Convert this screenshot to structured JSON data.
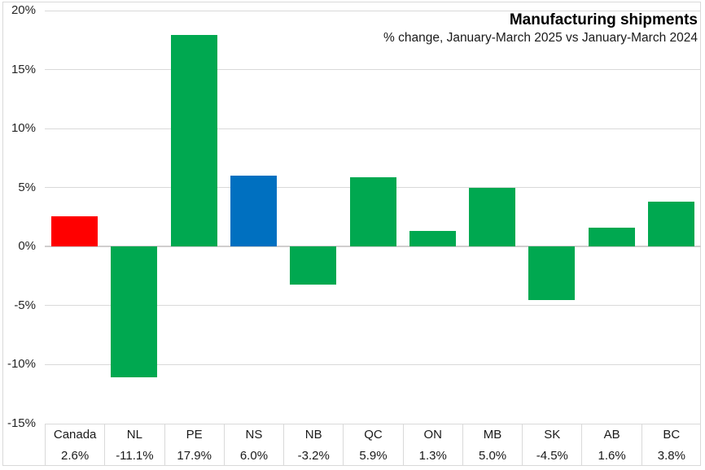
{
  "chart": {
    "title": "Manufacturing shipments",
    "subtitle": "% change, January-March 2025 vs January-March 2024"
  },
  "chart_data": {
    "type": "bar",
    "title": "Manufacturing shipments",
    "subtitle": "% change, January-March 2025 vs January-March 2024",
    "categories": [
      "Canada",
      "NL",
      "PE",
      "NS",
      "NB",
      "QC",
      "ON",
      "MB",
      "SK",
      "AB",
      "BC"
    ],
    "values": [
      2.6,
      -11.1,
      17.9,
      6.0,
      -3.2,
      5.9,
      1.3,
      5.0,
      -4.5,
      1.6,
      3.8
    ],
    "value_labels": [
      "2.6%",
      "-11.1%",
      "17.9%",
      "6.0%",
      "-3.2%",
      "5.9%",
      "1.3%",
      "5.0%",
      "-4.5%",
      "1.6%",
      "3.8%"
    ],
    "bar_colors": [
      "#ff0000",
      "#00a850",
      "#00a850",
      "#0070c0",
      "#00a850",
      "#00a850",
      "#00a850",
      "#00a850",
      "#00a850",
      "#00a850",
      "#00a850"
    ],
    "xlabel": "",
    "ylabel": "",
    "ylim": [
      -15,
      20
    ],
    "ytick_step": 5,
    "yticks": [
      20,
      15,
      10,
      5,
      0,
      -5,
      -10,
      -15
    ],
    "y_tick_labels": [
      "20%",
      "15%",
      "10%",
      "5%",
      "0%",
      "-5%",
      "-10%",
      "-15%"
    ],
    "grid": true,
    "legend": false,
    "colors": {
      "default_bar": "#00a850",
      "canada_bar": "#ff0000",
      "ns_bar": "#0070c0",
      "gridline": "#d9d9d9",
      "zero_line": "#d0cece",
      "text": "#1a1a1a"
    }
  }
}
